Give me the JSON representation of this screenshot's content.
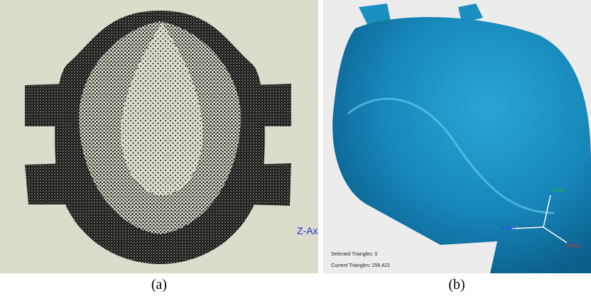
{
  "panel_a": {
    "axis_label": "Z-Ax",
    "caption": "(a)"
  },
  "panel_b": {
    "status": {
      "selected": "Selected Triangles: 0",
      "current": "Current Triangles: 256,422"
    },
    "axes": {
      "y": "Y-Axis",
      "z": "Z-Axis",
      "x": "X-Axis"
    },
    "caption": "(b)"
  }
}
